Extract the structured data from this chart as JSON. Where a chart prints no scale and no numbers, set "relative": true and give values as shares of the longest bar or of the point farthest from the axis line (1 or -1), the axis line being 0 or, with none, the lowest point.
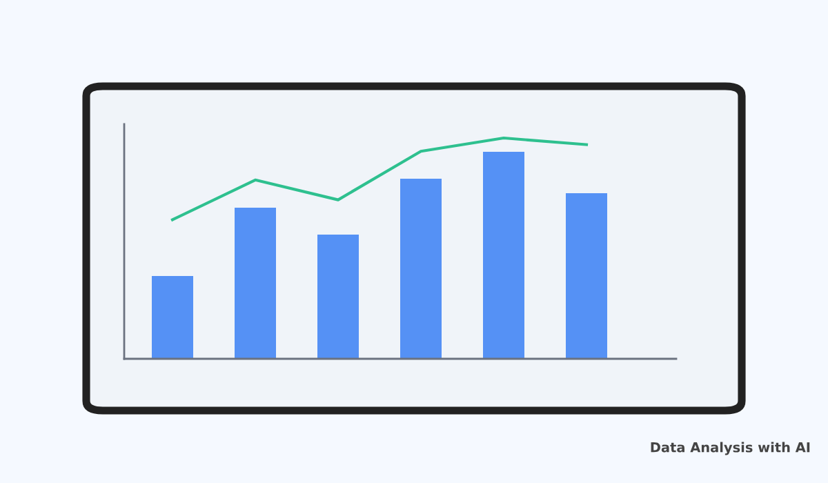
{
  "chart_data": [
    {
      "type": "bar",
      "relative": true,
      "categories": [
        null,
        null,
        null,
        null,
        null,
        null
      ],
      "values": [
        0.4,
        0.73,
        0.6,
        0.87,
        1,
        0.8
      ],
      "color": "#5591f5",
      "grid": false,
      "legend": false,
      "annotations": [
        "Data Analysis with AI"
      ]
    },
    {
      "type": "line",
      "relative": true,
      "categories": [
        null,
        null,
        null,
        null,
        null,
        null
      ],
      "values": [
        0.63,
        0.81,
        0.72,
        0.94,
        1,
        0.97
      ],
      "color": "#2ec08f",
      "marker": "none",
      "line_style": "solid",
      "grid": false,
      "legend": false
    }
  ]
}
